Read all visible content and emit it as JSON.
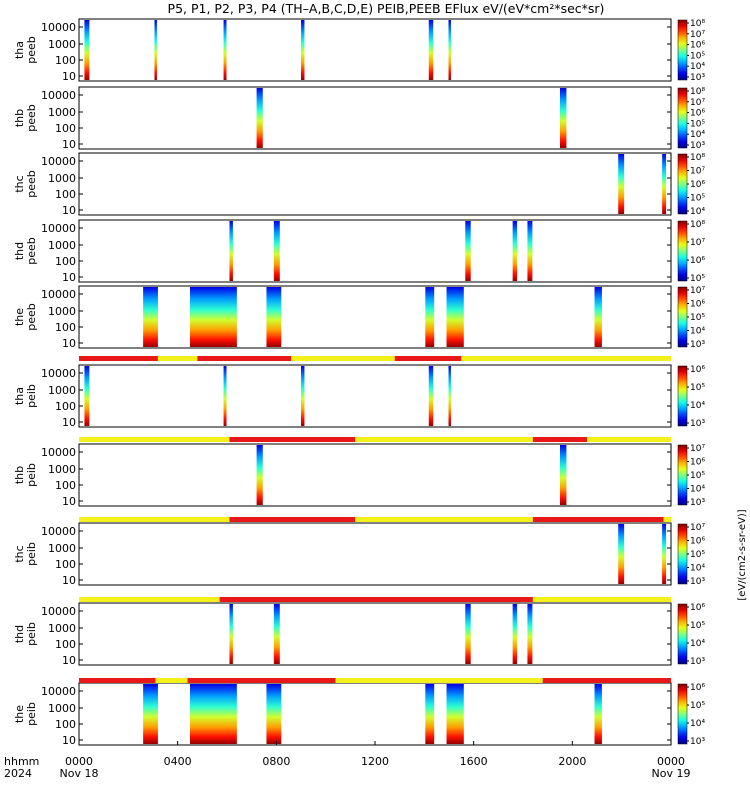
{
  "chart_data": {
    "type": "heatmap",
    "title": "P5, P1, P2, P3, P4 (TH–A,B,C,D,E) PEIB,PEEB EFlux eV/(eV*cm²*sec*sr)",
    "x_axis": {
      "unit_label": "hhmm",
      "year_label": "2024",
      "range_hours": [
        0,
        24
      ],
      "ticks": [
        {
          "hour": 0,
          "label": "0000",
          "sub": "Nov 18"
        },
        {
          "hour": 4,
          "label": "0400",
          "sub": ""
        },
        {
          "hour": 8,
          "label": "0800",
          "sub": ""
        },
        {
          "hour": 12,
          "label": "1200",
          "sub": ""
        },
        {
          "hour": 16,
          "label": "1600",
          "sub": ""
        },
        {
          "hour": 20,
          "label": "2000",
          "sub": ""
        },
        {
          "hour": 24,
          "label": "0000",
          "sub": "Nov 19"
        }
      ]
    },
    "y_ticks": [
      "10000",
      "1000",
      "100",
      "10"
    ],
    "colorbar_unit": "eV/(cm2-s-sr-eV)",
    "panels": [
      {
        "id": "tha-peeb",
        "label1": "tha",
        "label2": "peeb",
        "cb": [
          "10⁸",
          "10⁷",
          "10⁶",
          "10⁵",
          "10⁴",
          "10³"
        ],
        "segments": [
          [
            0.22,
            0.42
          ],
          [
            3.06,
            3.16
          ],
          [
            5.86,
            5.98
          ],
          [
            9.0,
            9.14
          ],
          [
            14.18,
            14.36
          ],
          [
            14.98,
            15.08
          ]
        ],
        "bar": null
      },
      {
        "id": "thb-peeb",
        "label1": "thb",
        "label2": "peeb",
        "cb": [
          "10⁸",
          "10⁷",
          "10⁶",
          "10⁵",
          "10⁴",
          "10³"
        ],
        "segments": [
          [
            7.2,
            7.45
          ],
          [
            19.5,
            19.76
          ]
        ],
        "bar": null
      },
      {
        "id": "thc-peeb",
        "label1": "thc",
        "label2": "peeb",
        "cb": [
          "10⁸",
          "10⁷",
          "10⁶",
          "10⁵",
          "10⁴"
        ],
        "segments": [
          [
            21.86,
            22.1
          ],
          [
            23.64,
            23.8
          ]
        ],
        "bar": null
      },
      {
        "id": "thd-peeb",
        "label1": "thd",
        "label2": "peeb",
        "cb": [
          "10⁸",
          "10⁷",
          "10⁶",
          "10⁵"
        ],
        "segments": [
          [
            6.1,
            6.24
          ],
          [
            7.9,
            8.14
          ],
          [
            15.66,
            15.88
          ],
          [
            17.58,
            17.76
          ],
          [
            18.18,
            18.38
          ]
        ],
        "bar": null
      },
      {
        "id": "the-peeb",
        "label1": "the",
        "label2": "peeb",
        "cb": [
          "10⁷",
          "10⁶",
          "10⁵",
          "10⁴",
          "10³"
        ],
        "segments": [
          [
            2.6,
            3.2
          ],
          [
            4.5,
            6.4
          ],
          [
            7.6,
            8.2
          ],
          [
            14.04,
            14.4
          ],
          [
            14.9,
            15.6
          ],
          [
            20.9,
            21.2
          ]
        ],
        "bar": [
          [
            "r",
            0,
            3.2
          ],
          [
            "y",
            3.2,
            4.8
          ],
          [
            "r",
            4.8,
            8.6
          ],
          [
            "y",
            8.6,
            12.8
          ],
          [
            "r",
            12.8,
            15.5
          ],
          [
            "y",
            15.5,
            24
          ]
        ]
      },
      {
        "id": "tha-peib",
        "label1": "tha",
        "label2": "peib",
        "cb": [
          "10⁶",
          "10⁵",
          "10⁴",
          "10³"
        ],
        "segments": [
          [
            0.22,
            0.42
          ],
          [
            5.86,
            5.98
          ],
          [
            9.0,
            9.14
          ],
          [
            14.18,
            14.36
          ],
          [
            14.98,
            15.08
          ]
        ],
        "bar": null
      },
      {
        "id": "thb-peib",
        "label1": "thb",
        "label2": "peib",
        "cb": [
          "10⁷",
          "10⁶",
          "10⁵",
          "10⁴",
          "10³"
        ],
        "segments": [
          [
            7.2,
            7.45
          ],
          [
            19.5,
            19.76
          ]
        ],
        "bar": [
          [
            "y",
            0,
            6.1
          ],
          [
            "r",
            6.1,
            11.2
          ],
          [
            "y",
            11.2,
            18.4
          ],
          [
            "r",
            18.4,
            20.6
          ],
          [
            "y",
            20.6,
            24
          ]
        ]
      },
      {
        "id": "thc-peib",
        "label1": "thc",
        "label2": "peib",
        "cb": [
          "10⁷",
          "10⁶",
          "10⁵",
          "10⁴",
          "10³"
        ],
        "segments": [
          [
            21.86,
            22.1
          ],
          [
            23.64,
            23.8
          ]
        ],
        "bar": [
          [
            "y",
            0,
            6.1
          ],
          [
            "r",
            6.1,
            11.2
          ],
          [
            "y",
            11.2,
            18.4
          ],
          [
            "r",
            18.4,
            23.7
          ],
          [
            "y",
            23.7,
            24
          ]
        ]
      },
      {
        "id": "thd-peib",
        "label1": "thd",
        "label2": "peib",
        "cb": [
          "10⁶",
          "10⁵",
          "10⁴",
          "10³"
        ],
        "segments": [
          [
            6.1,
            6.24
          ],
          [
            7.9,
            8.14
          ],
          [
            15.66,
            15.88
          ],
          [
            17.58,
            17.76
          ],
          [
            18.18,
            18.38
          ]
        ],
        "bar": [
          [
            "y",
            0,
            5.7
          ],
          [
            "r",
            5.7,
            18.4
          ],
          [
            "y",
            18.4,
            24
          ]
        ]
      },
      {
        "id": "the-peib",
        "label1": "the",
        "label2": "peib",
        "cb": [
          "10⁶",
          "10⁵",
          "10⁴",
          "10³"
        ],
        "segments": [
          [
            2.6,
            3.2
          ],
          [
            4.5,
            6.4
          ],
          [
            7.6,
            8.2
          ],
          [
            14.04,
            14.4
          ],
          [
            14.9,
            15.6
          ],
          [
            20.9,
            21.2
          ]
        ],
        "bar": [
          [
            "r",
            0,
            3.1
          ],
          [
            "y",
            3.1,
            4.4
          ],
          [
            "r",
            4.4,
            10.4
          ],
          [
            "y",
            10.4,
            18.8
          ],
          [
            "r",
            18.8,
            24
          ]
        ]
      }
    ],
    "colors": {
      "bar_red": "#e81818",
      "bar_yellow": "#f4f01c"
    }
  }
}
